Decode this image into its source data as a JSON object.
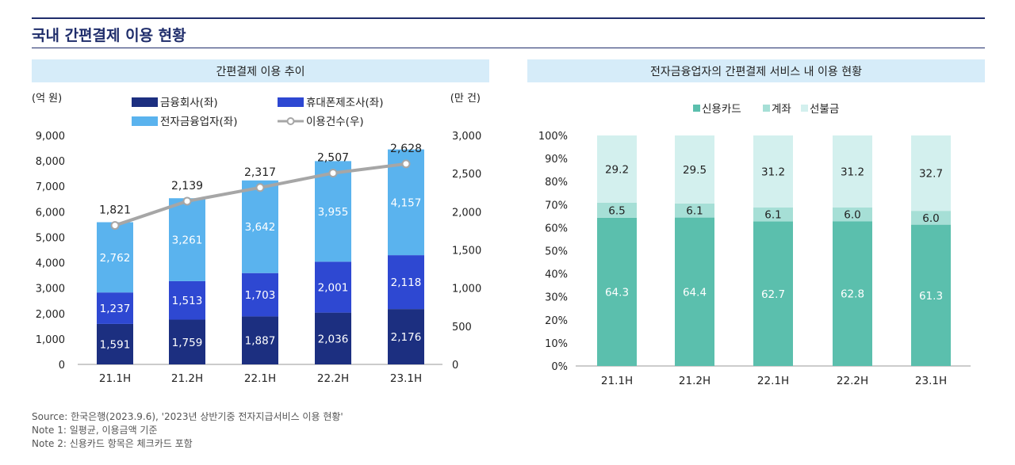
{
  "page": {
    "title": "국내 간편결제 이용 현황",
    "notes": [
      "Source: 한국은행(2023.9.6), '2023년 상반기중 전자지급서비스 이용 현황'",
      "Note 1: 일평균, 이용금액 기준",
      "Note 2: 신용카드 항목은 체크카드 포함"
    ]
  },
  "chart_data": [
    {
      "type": "bar",
      "stacked": true,
      "title": "간편결제 이용 추이",
      "ylabel": "(억 원)",
      "y2label": "(만 건)",
      "ylim": [
        0,
        9000
      ],
      "y2lim": [
        0,
        3000
      ],
      "yticks": [
        "0",
        "1,000",
        "2,000",
        "3,000",
        "4,000",
        "5,000",
        "6,000",
        "7,000",
        "8,000",
        "9,000"
      ],
      "y2ticks": [
        "0",
        "500",
        "1,000",
        "1,500",
        "2,000",
        "2,500",
        "3,000"
      ],
      "categories": [
        "21.1H",
        "21.2H",
        "22.1H",
        "22.2H",
        "23.1H"
      ],
      "series": [
        {
          "name": "금융회사(좌)",
          "values": [
            1591,
            1759,
            1887,
            2036,
            2176
          ],
          "labels": [
            "1,591",
            "1,759",
            "1,887",
            "2,036",
            "2,176"
          ],
          "color": "#1c2f80",
          "label_color": "#ffffff"
        },
        {
          "name": "휴대폰제조사(좌)",
          "values": [
            1237,
            1513,
            1703,
            2001,
            2118
          ],
          "labels": [
            "1,237",
            "1,513",
            "1,703",
            "2,001",
            "2,118"
          ],
          "color": "#2e48d2",
          "label_color": "#ffffff"
        },
        {
          "name": "전자금융업자(좌)",
          "values": [
            2762,
            3261,
            3642,
            3955,
            4157
          ],
          "labels": [
            "2,762",
            "3,261",
            "3,642",
            "3,955",
            "4,157"
          ],
          "color": "#5ab3ee",
          "label_color": "#ffffff"
        }
      ],
      "line": {
        "name": "이용건수(우)",
        "values": [
          1821,
          2139,
          2317,
          2507,
          2628
        ],
        "labels": [
          "1,821",
          "2,139",
          "2,317",
          "2,507",
          "2,628"
        ],
        "color": "#a6a6a6"
      },
      "legend_placement": "top"
    },
    {
      "type": "bar",
      "stacked": true,
      "title": "전자금융업자의 간편결제 서비스 내 이용 현황",
      "ylim": [
        0,
        100
      ],
      "yticks": [
        "0%",
        "10%",
        "20%",
        "30%",
        "40%",
        "50%",
        "60%",
        "70%",
        "80%",
        "90%",
        "100%"
      ],
      "categories": [
        "21.1H",
        "21.2H",
        "22.1H",
        "22.2H",
        "23.1H"
      ],
      "series": [
        {
          "name": "신용카드",
          "values": [
            64.3,
            64.4,
            62.7,
            62.8,
            61.3
          ],
          "labels": [
            "64.3",
            "64.4",
            "62.7",
            "62.8",
            "61.3"
          ],
          "color": "#5bbfad",
          "label_color": "#ffffff"
        },
        {
          "name": "계좌",
          "values": [
            6.5,
            6.1,
            6.1,
            6.0,
            6.0
          ],
          "labels": [
            "6.5",
            "6.1",
            "6.1",
            "6.0",
            "6.0"
          ],
          "color": "#a6dfd6",
          "label_color": "#222222"
        },
        {
          "name": "선불금",
          "values": [
            29.2,
            29.5,
            31.2,
            31.2,
            32.7
          ],
          "labels": [
            "29.2",
            "29.5",
            "31.2",
            "31.2",
            "32.7"
          ],
          "color": "#d3f0ee",
          "label_color": "#222222"
        }
      ],
      "legend_placement": "top"
    }
  ]
}
